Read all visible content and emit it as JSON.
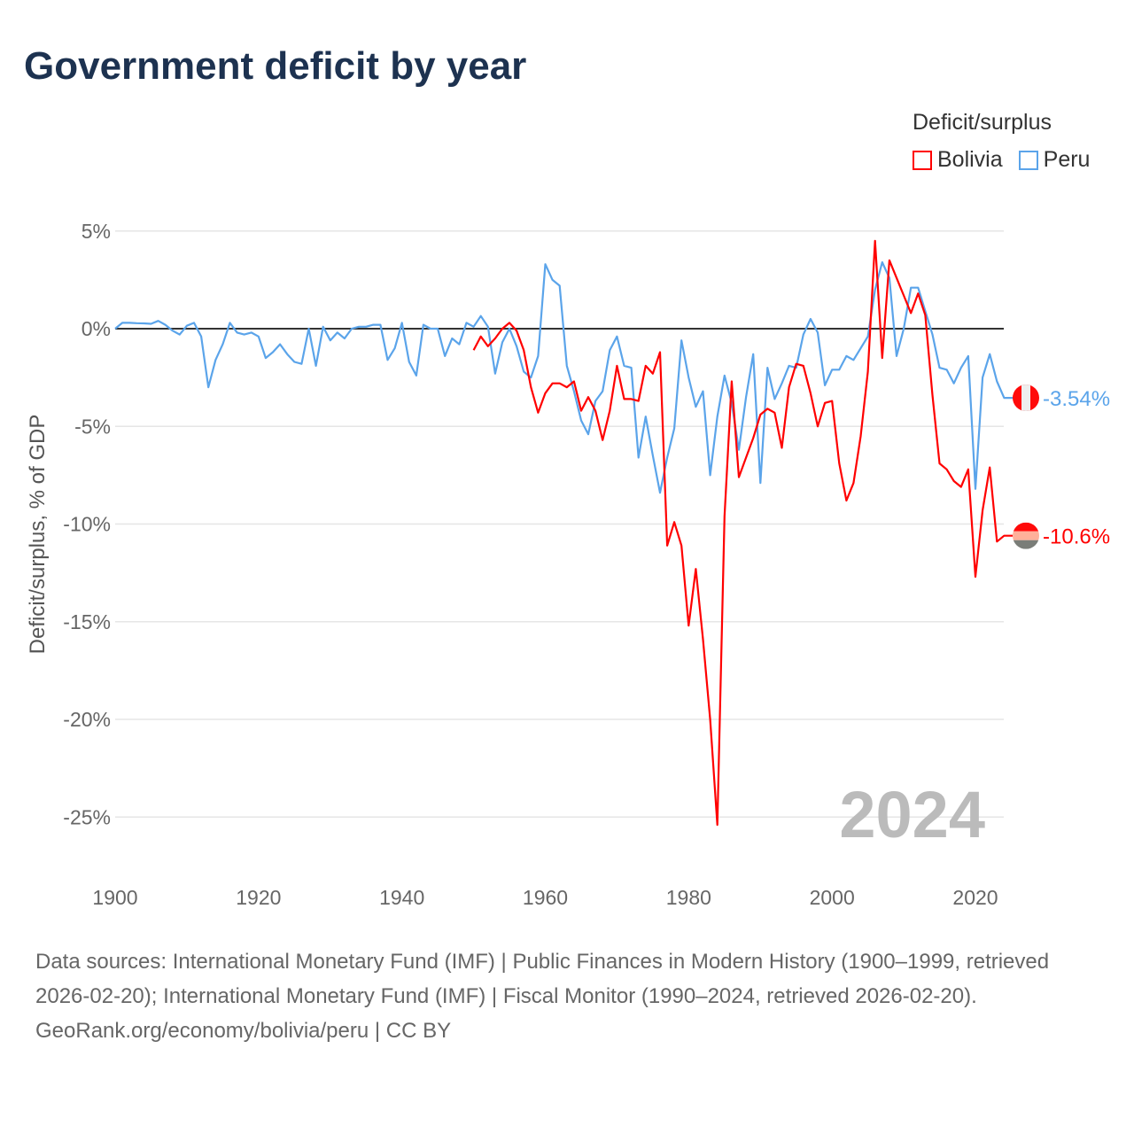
{
  "title": "Government deficit by year",
  "legend": {
    "title": "Deficit/surplus",
    "items": [
      {
        "name": "Bolivia",
        "color": "#ff0000"
      },
      {
        "name": "Peru",
        "color": "#5ba4ea"
      }
    ]
  },
  "year_label": "2024",
  "footer": {
    "sources": "Data sources: International Monetary Fund (IMF) | Public Finances in Modern History (1900–1999, retrieved 2026-02-20); International Monetary Fund (IMF) | Fiscal Monitor (1990–2024, retrieved 2026-02-20).",
    "credit": "GeoRank.org/economy/bolivia/peru | CC BY"
  },
  "chart_data": {
    "type": "line",
    "title": "Government deficit by year",
    "xlabel": "",
    "ylabel": "Deficit/surplus, % of GDP",
    "xlim": [
      1900,
      2024
    ],
    "ylim": [
      -27,
      5
    ],
    "x_ticks": [
      1900,
      1920,
      1940,
      1960,
      1980,
      2000,
      2020
    ],
    "x_tick_labels": [
      "1900",
      "1920",
      "1940",
      "1960",
      "1980",
      "2000",
      "2020"
    ],
    "y_ticks": [
      5,
      0,
      -5,
      -10,
      -15,
      -20,
      -25
    ],
    "y_tick_labels": [
      "5%",
      "0%",
      "-5%",
      "-10%",
      "-15%",
      "-20%",
      "-25%"
    ],
    "grid": true,
    "legend_position": "top-right",
    "series": [
      {
        "name": "Bolivia",
        "color": "#ff0000",
        "end_label": "-10.6%",
        "start_year": 1950,
        "values": [
          -1.1,
          -0.4,
          -0.9,
          -0.5,
          0.0,
          0.3,
          -0.1,
          -1.1,
          -3.0,
          -4.3,
          -3.3,
          -2.8,
          -2.8,
          -3.0,
          -2.7,
          -4.2,
          -3.5,
          -4.2,
          -5.7,
          -4.2,
          -1.9,
          -3.6,
          -3.6,
          -3.7,
          -1.9,
          -2.3,
          -1.2,
          -11.1,
          -9.9,
          -11.1,
          -15.2,
          -12.3,
          -15.9,
          -20.0,
          -25.4,
          -9.6,
          -2.7,
          -7.6,
          -6.6,
          -5.6,
          -4.4,
          -4.1,
          -4.3,
          -6.1,
          -3.0,
          -1.8,
          -1.9,
          -3.3,
          -5.0,
          -3.8,
          -3.7,
          -6.9,
          -8.8,
          -7.9,
          -5.5,
          -2.2,
          4.5,
          -1.5,
          3.5,
          2.6,
          1.7,
          0.8,
          1.8,
          0.7,
          -3.4,
          -6.9,
          -7.2,
          -7.8,
          -8.1,
          -7.2,
          -12.7,
          -9.3,
          -7.1,
          -10.9,
          -10.6
        ]
      },
      {
        "name": "Peru",
        "color": "#5ba4ea",
        "end_label": "-3.54%",
        "start_year": 1900,
        "values": [
          0.0,
          0.3,
          0.3,
          0.28,
          0.27,
          0.25,
          0.4,
          0.2,
          -0.1,
          -0.3,
          0.15,
          0.3,
          -0.4,
          -3.0,
          -1.6,
          -0.8,
          0.3,
          -0.2,
          -0.3,
          -0.2,
          -0.4,
          -1.5,
          -1.2,
          -0.8,
          -1.3,
          -1.7,
          -1.8,
          0.0,
          -1.9,
          0.1,
          -0.6,
          -0.2,
          -0.5,
          0.0,
          0.1,
          0.1,
          0.2,
          0.2,
          -1.6,
          -1.0,
          0.3,
          -1.7,
          -2.4,
          0.2,
          0.0,
          0.0,
          -1.4,
          -0.5,
          -0.8,
          0.3,
          0.1,
          0.65,
          0.1,
          -2.3,
          -0.7,
          0.0,
          -0.9,
          -2.2,
          -2.5,
          -1.4,
          3.3,
          2.5,
          2.2,
          -1.9,
          -3.2,
          -4.7,
          -5.4,
          -3.7,
          -3.2,
          -1.1,
          -0.4,
          -1.9,
          -2.0,
          -6.6,
          -4.5,
          -6.5,
          -8.4,
          -6.6,
          -5.1,
          -0.6,
          -2.5,
          -4.0,
          -3.2,
          -7.5,
          -4.5,
          -2.4,
          -3.8,
          -6.2,
          -3.5,
          -1.3,
          -7.9,
          -2.0,
          -3.6,
          -2.8,
          -1.9,
          -2.0,
          -0.3,
          0.5,
          -0.2,
          -2.9,
          -2.1,
          -2.1,
          -1.4,
          -1.6,
          -1.0,
          -0.4,
          2.0,
          3.4,
          2.6,
          -1.4,
          0.0,
          2.1,
          2.1,
          0.9,
          -0.3,
          -2.0,
          -2.1,
          -2.8,
          -2.0,
          -1.4,
          -8.2,
          -2.5,
          -1.3,
          -2.7,
          -3.54
        ]
      }
    ]
  }
}
